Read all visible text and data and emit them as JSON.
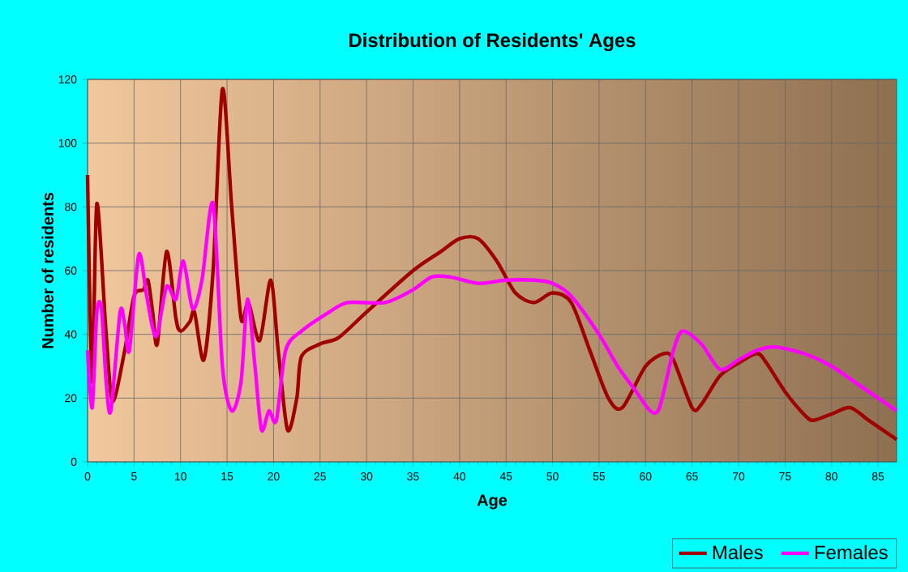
{
  "chart_data": {
    "type": "line",
    "title": "Distribution of Residents' Ages",
    "xlabel": "Age",
    "ylabel": "Number of residents",
    "xlim": [
      0,
      87
    ],
    "xticks": [
      0,
      5,
      10,
      15,
      20,
      25,
      30,
      35,
      40,
      45,
      50,
      55,
      60,
      65,
      70,
      75,
      80,
      85
    ],
    "ylim": [
      0,
      120
    ],
    "yticks": [
      0,
      20,
      40,
      60,
      80,
      100,
      120
    ],
    "grid": true,
    "legend": "bottom right",
    "line_style": "solid",
    "series": [
      {
        "name": "Males",
        "color": "#a00000",
        "x": [
          0,
          0.5,
          1,
          2,
          2.7,
          4,
          5,
          6,
          6.5,
          7,
          7.5,
          8.5,
          9.5,
          10,
          11,
          11.5,
          12.5,
          13.5,
          14.5,
          15.5,
          16.5,
          17.3,
          18.5,
          19.7,
          20.5,
          21.5,
          22.5,
          23,
          25,
          27,
          30,
          35,
          38,
          40,
          42,
          44,
          46,
          48,
          50,
          52,
          54,
          56,
          57.5,
          60,
          62,
          63,
          65,
          66,
          68,
          70,
          72,
          73,
          75,
          77,
          78,
          80,
          82,
          84,
          87
        ],
        "values": [
          90,
          25,
          81,
          40,
          19,
          35,
          52,
          54,
          57,
          47,
          37,
          66,
          45,
          41,
          44,
          47,
          32,
          60,
          117,
          80,
          45,
          50,
          38,
          57,
          35,
          10,
          20,
          33,
          37,
          39,
          47,
          60,
          66,
          70,
          70,
          63,
          53,
          50,
          53,
          50,
          35,
          20,
          17,
          30,
          34,
          32,
          17,
          18,
          27,
          31,
          34,
          31,
          22,
          15,
          13,
          15,
          17,
          13,
          7
        ]
      },
      {
        "name": "Females",
        "color": "#ff00ff",
        "x": [
          0,
          0.5,
          1,
          1.5,
          2,
          2.5,
          3.5,
          4,
          4.5,
          5.5,
          6.3,
          7,
          7.5,
          8.5,
          9.5,
          10.3,
          11.3,
          12.3,
          13.5,
          14.5,
          15.5,
          16.5,
          17.2,
          18,
          18.7,
          19.5,
          20.3,
          21.3,
          23,
          26,
          28,
          32,
          35,
          37,
          39,
          42,
          45,
          48,
          50,
          52,
          55,
          57,
          59,
          60.5,
          61.5,
          63,
          64,
          66,
          68,
          70,
          72,
          74,
          77,
          80,
          83,
          87
        ],
        "values": [
          35,
          17,
          47,
          48,
          25,
          16,
          47,
          43,
          35,
          65,
          53,
          42,
          40,
          55,
          51,
          63,
          48,
          57,
          81,
          30,
          16,
          25,
          51,
          30,
          10,
          16,
          13,
          35,
          41,
          47,
          50,
          50,
          54,
          58,
          58,
          56,
          57,
          57,
          56,
          52,
          40,
          30,
          22,
          16,
          17,
          35,
          41,
          37,
          29,
          32,
          35,
          36,
          34,
          30,
          24,
          16
        ]
      }
    ]
  }
}
